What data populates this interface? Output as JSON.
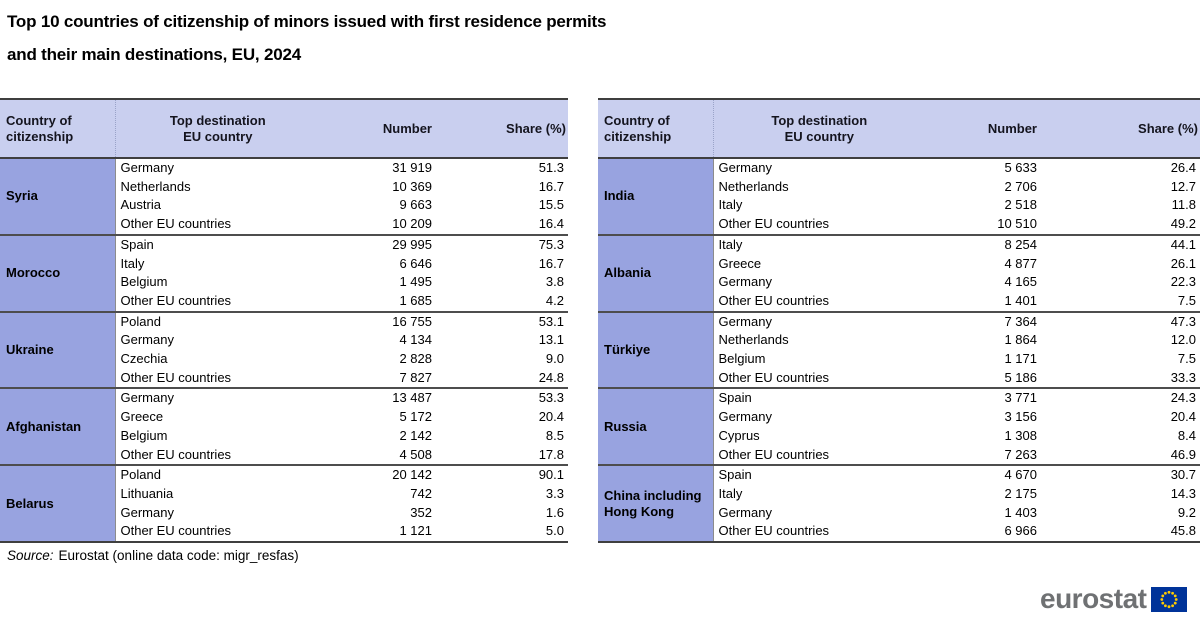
{
  "title": {
    "line1": "Top 10 countries of citizenship of minors issued with first residence permits",
    "line2": "and their main destinations, EU, 2024"
  },
  "headers": {
    "citizenship_line1": "Country of",
    "citizenship_line2": "citizenship",
    "destination_line1": "Top destination",
    "destination_line2": "EU country",
    "number": "Number",
    "share": "Share (%)"
  },
  "chart_data": {
    "type": "table",
    "title": "Top 10 countries of citizenship of minors issued with first residence permits and their main destinations, EU, 2024",
    "columns": [
      "Country of citizenship",
      "Top destination EU country",
      "Number",
      "Share (%)"
    ],
    "tables": [
      {
        "groups": [
          {
            "citizenship": "Syria",
            "rows": [
              {
                "destination": "Germany",
                "number": "31 919",
                "share": "51.3"
              },
              {
                "destination": "Netherlands",
                "number": "10 369",
                "share": "16.7"
              },
              {
                "destination": "Austria",
                "number": "9 663",
                "share": "15.5"
              },
              {
                "destination": "Other EU countries",
                "number": "10 209",
                "share": "16.4"
              }
            ]
          },
          {
            "citizenship": "Morocco",
            "rows": [
              {
                "destination": "Spain",
                "number": "29 995",
                "share": "75.3"
              },
              {
                "destination": "Italy",
                "number": "6 646",
                "share": "16.7"
              },
              {
                "destination": "Belgium",
                "number": "1 495",
                "share": "3.8"
              },
              {
                "destination": "Other EU countries",
                "number": "1 685",
                "share": "4.2"
              }
            ]
          },
          {
            "citizenship": "Ukraine",
            "rows": [
              {
                "destination": "Poland",
                "number": "16 755",
                "share": "53.1"
              },
              {
                "destination": "Germany",
                "number": "4 134",
                "share": "13.1"
              },
              {
                "destination": "Czechia",
                "number": "2 828",
                "share": "9.0"
              },
              {
                "destination": "Other EU countries",
                "number": "7 827",
                "share": "24.8"
              }
            ]
          },
          {
            "citizenship": "Afghanistan",
            "rows": [
              {
                "destination": "Germany",
                "number": "13 487",
                "share": "53.3"
              },
              {
                "destination": "Greece",
                "number": "5 172",
                "share": "20.4"
              },
              {
                "destination": "Belgium",
                "number": "2 142",
                "share": "8.5"
              },
              {
                "destination": "Other EU countries",
                "number": "4 508",
                "share": "17.8"
              }
            ]
          },
          {
            "citizenship": "Belarus",
            "rows": [
              {
                "destination": "Poland",
                "number": "20 142",
                "share": "90.1"
              },
              {
                "destination": "Lithuania",
                "number": "742",
                "share": "3.3"
              },
              {
                "destination": "Germany",
                "number": "352",
                "share": "1.6"
              },
              {
                "destination": "Other EU countries",
                "number": "1 121",
                "share": "5.0"
              }
            ]
          }
        ]
      },
      {
        "groups": [
          {
            "citizenship": "India",
            "rows": [
              {
                "destination": "Germany",
                "number": "5 633",
                "share": "26.4"
              },
              {
                "destination": "Netherlands",
                "number": "2 706",
                "share": "12.7"
              },
              {
                "destination": "Italy",
                "number": "2 518",
                "share": "11.8"
              },
              {
                "destination": "Other EU countries",
                "number": "10 510",
                "share": "49.2"
              }
            ]
          },
          {
            "citizenship": "Albania",
            "rows": [
              {
                "destination": "Italy",
                "number": "8 254",
                "share": "44.1"
              },
              {
                "destination": "Greece",
                "number": "4 877",
                "share": "26.1"
              },
              {
                "destination": "Germany",
                "number": "4 165",
                "share": "22.3"
              },
              {
                "destination": "Other EU countries",
                "number": "1 401",
                "share": "7.5"
              }
            ]
          },
          {
            "citizenship": "Türkiye",
            "rows": [
              {
                "destination": "Germany",
                "number": "7 364",
                "share": "47.3"
              },
              {
                "destination": "Netherlands",
                "number": "1 864",
                "share": "12.0"
              },
              {
                "destination": "Belgium",
                "number": "1 171",
                "share": "7.5"
              },
              {
                "destination": "Other EU countries",
                "number": "5 186",
                "share": "33.3"
              }
            ]
          },
          {
            "citizenship": "Russia",
            "rows": [
              {
                "destination": "Spain",
                "number": "3 771",
                "share": "24.3"
              },
              {
                "destination": "Germany",
                "number": "3 156",
                "share": "20.4"
              },
              {
                "destination": "Cyprus",
                "number": "1 308",
                "share": "8.4"
              },
              {
                "destination": "Other EU countries",
                "number": "7 263",
                "share": "46.9"
              }
            ]
          },
          {
            "citizenship": "China including Hong Kong",
            "rows": [
              {
                "destination": "Spain",
                "number": "4 670",
                "share": "30.7"
              },
              {
                "destination": "Italy",
                "number": "2 175",
                "share": "14.3"
              },
              {
                "destination": "Germany",
                "number": "1 403",
                "share": "9.2"
              },
              {
                "destination": "Other EU countries",
                "number": "6 966",
                "share": "45.8"
              }
            ]
          }
        ]
      }
    ]
  },
  "source": {
    "label": "Source:",
    "text": "Eurostat (online data code: migr_resfas)"
  },
  "logo": {
    "text": "eurostat",
    "flag_icon": "eu-flag-icon"
  },
  "colors": {
    "header_bg": "#c9cfef",
    "citizenship_bg": "#98a3e0",
    "border_dark": "#3f3f3f",
    "logo_gray": "#6f7173",
    "eu_blue": "#003399",
    "star_yellow": "#ffcc00"
  }
}
